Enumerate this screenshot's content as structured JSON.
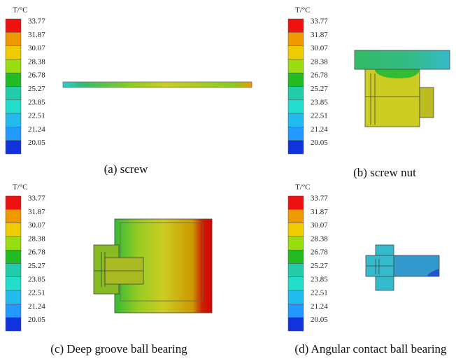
{
  "panels": [
    {
      "legend_title": "T/°C",
      "legend_values": [
        "33.77",
        "31.87",
        "30.07",
        "28.38",
        "26.78",
        "25.27",
        "23.85",
        "22.51",
        "21.24",
        "20.05"
      ],
      "caption": "(a) screw"
    },
    {
      "legend_title": "T/°C",
      "legend_values": [
        "33.77",
        "31.87",
        "30.07",
        "28.38",
        "26.78",
        "25.27",
        "23.85",
        "22.51",
        "21.24",
        "20.05"
      ],
      "caption": "(b) screw nut"
    },
    {
      "legend_title": "T/°C",
      "legend_values": [
        "33.77",
        "31.87",
        "30.07",
        "28.38",
        "26.78",
        "25.27",
        "23.85",
        "22.51",
        "21.24",
        "20.05"
      ],
      "caption": "(c) Deep groove ball bearing"
    },
    {
      "legend_title": "T/°C",
      "legend_values": [
        "33.77",
        "31.87",
        "30.07",
        "28.38",
        "26.78",
        "25.27",
        "23.85",
        "22.51",
        "21.24",
        "20.05"
      ],
      "caption": "(d) Angular contact ball bearing"
    }
  ]
}
